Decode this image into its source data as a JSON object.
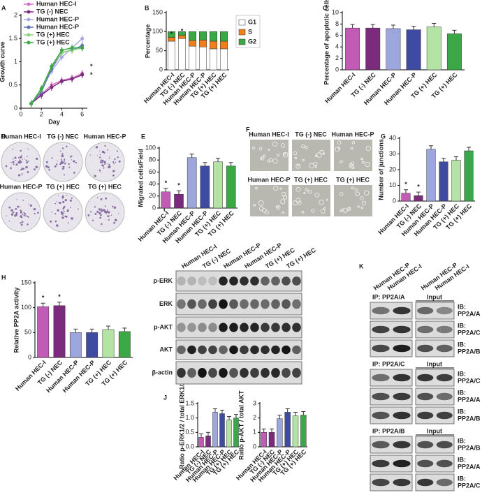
{
  "panel_letters": [
    "A",
    "B",
    "C",
    "D",
    "E",
    "F",
    "G",
    "H",
    "I",
    "J",
    "K"
  ],
  "chart_data": [
    {
      "type": "line",
      "ylabel": "Growth curve",
      "xlabel": "Day",
      "x": [
        1,
        2,
        3,
        4,
        5,
        6
      ],
      "xlim": [
        0,
        6.5
      ],
      "xticks": [
        0,
        2,
        4,
        6
      ],
      "ylim": [
        0,
        2
      ],
      "yticks": [
        0,
        0.5,
        1,
        1.5,
        2
      ],
      "annotations": [
        "*",
        "*"
      ],
      "series": [
        {
          "name": "Human HEC-I",
          "color": "#d36fc6",
          "values": [
            0.1,
            0.3,
            0.5,
            0.6,
            0.65,
            0.75
          ]
        },
        {
          "name": "TG (-) NEC",
          "color": "#7b2a7e",
          "values": [
            0.1,
            0.28,
            0.45,
            0.58,
            0.63,
            0.72
          ]
        },
        {
          "name": "Human HEC-P",
          "color": "#a9a9e6",
          "values": [
            0.1,
            0.4,
            0.8,
            1.1,
            1.3,
            1.5
          ]
        },
        {
          "name": "Human HEC-P",
          "color": "#5d6fb5",
          "values": [
            0.1,
            0.35,
            0.85,
            1.2,
            1.25,
            1.35
          ]
        },
        {
          "name": "TG (+) HEC",
          "color": "#8fd17f",
          "values": [
            0.1,
            0.4,
            0.9,
            1.2,
            1.25,
            1.3
          ]
        },
        {
          "name": "TG (+) HEC",
          "color": "#3aa843",
          "values": [
            0.1,
            0.42,
            0.9,
            1.25,
            1.3,
            1.3
          ]
        }
      ]
    },
    {
      "type": "stacked_bar",
      "ylabel": "Percentage",
      "categories": [
        "Human HEC-I",
        "TG (-) NEC",
        "Human HEC-P",
        "Human HEC-P",
        "TG (+) HEC",
        "TG (+) HEC"
      ],
      "ylim": [
        0,
        150
      ],
      "yticks": [
        0,
        50,
        100,
        150
      ],
      "markers": [
        "*",
        "*",
        null,
        null,
        null,
        null
      ],
      "series": [
        {
          "name": "G1",
          "color": "#ffffff",
          "values": [
            75,
            82,
            62,
            60,
            55,
            55
          ]
        },
        {
          "name": "S",
          "color": "#f07f1c",
          "values": [
            10,
            8,
            15,
            18,
            20,
            20
          ]
        },
        {
          "name": "G2",
          "color": "#3aa843",
          "values": [
            15,
            10,
            23,
            22,
            25,
            25
          ]
        }
      ]
    },
    {
      "type": "bar",
      "ylabel": "Percentage of apoptotic cells",
      "categories": [
        "Human HEC-I",
        "TG (-) NEC",
        "Human HEC-P",
        "Human HEC-P",
        "TG (+) HEC",
        "TG (+) HEC"
      ],
      "ylim": [
        0,
        10
      ],
      "yticks": [
        0,
        2,
        4,
        6,
        8,
        10
      ],
      "colors": [
        "#c25bb5",
        "#7b2a7e",
        "#9ea7dd",
        "#3f4ba3",
        "#b5e3a6",
        "#39a845"
      ],
      "values": [
        7.3,
        7.3,
        7.2,
        7.0,
        7.5,
        6.3
      ]
    },
    {
      "type": "bar",
      "ylabel": "Migrated cells/Field",
      "categories": [
        "Human HEC-I",
        "TG (-) NEC",
        "Human HEC-P",
        "Human HEC-P",
        "TG (+) HEC",
        "TG (+) HEC"
      ],
      "ylim": [
        0,
        100
      ],
      "yticks": [
        0,
        20,
        40,
        60,
        80,
        100
      ],
      "colors": [
        "#c25bb5",
        "#7b2a7e",
        "#9ea7dd",
        "#3f4ba3",
        "#b5e3a6",
        "#39a845"
      ],
      "values": [
        27,
        23,
        84,
        70,
        77,
        70
      ],
      "markers": [
        "*",
        "*",
        null,
        null,
        null,
        null
      ]
    },
    {
      "type": "bar",
      "ylabel": "Number of junctions",
      "categories": [
        "Human HEC-I",
        "TG (-) NEC",
        "Human HEC-P",
        "Human HEC-P",
        "TG (+) HEC",
        "TG (+) HEC"
      ],
      "ylim": [
        0,
        40
      ],
      "yticks": [
        0,
        10,
        20,
        30,
        40
      ],
      "colors": [
        "#c25bb5",
        "#7b2a7e",
        "#9ea7dd",
        "#3f4ba3",
        "#b5e3a6",
        "#39a845"
      ],
      "values": [
        5,
        3.5,
        33,
        25,
        26,
        32
      ],
      "markers": [
        "*",
        "*",
        null,
        null,
        null,
        null
      ]
    },
    {
      "type": "bar",
      "ylabel": "Relative PP2A activity",
      "categories": [
        "Human HEC-I",
        "TG (-) NEC",
        "Human HEC-P",
        "Human HEC-P",
        "TG (+) HEC",
        "TG (+) HEC"
      ],
      "ylim": [
        0,
        150
      ],
      "yticks": [
        0,
        50,
        100,
        150
      ],
      "colors": [
        "#c25bb5",
        "#7b2a7e",
        "#9ea7dd",
        "#3f4ba3",
        "#b5e3a6",
        "#39a845"
      ],
      "values": [
        102,
        104,
        50,
        50,
        56,
        52
      ],
      "markers": [
        "*",
        "*",
        null,
        null,
        null,
        null
      ]
    },
    {
      "type": "bar",
      "ylabel": "Ratio p-ERK1/2 / total ERK1/2",
      "categories": [
        "Human HEC-I",
        "TG (-) NEC",
        "Human HEC-P",
        "Human HEC-P",
        "TG (+) HEC",
        "TG (+) HEC"
      ],
      "ylim": [
        0,
        1.5
      ],
      "yticks": [
        {
          "value": 0,
          "label": "0.0"
        },
        0.5,
        {
          "value": 1,
          "label": "1.0"
        },
        1.5
      ],
      "colors": [
        "#c25bb5",
        "#7b2a7e",
        "#9ea7dd",
        "#3f4ba3",
        "#b5e3a6",
        "#39a845"
      ],
      "values": [
        0.33,
        0.38,
        1.2,
        1.15,
        0.93,
        1.0
      ]
    },
    {
      "type": "bar",
      "ylabel": "Ratio p-AKT / total AKT",
      "categories": [
        "Human HEC-I",
        "TG (-) NEC",
        "Human HEC-P",
        "Human HEC-P",
        "TG (+) HEC",
        "TG (+) HEC"
      ],
      "ylim": [
        0,
        3
      ],
      "yticks": [
        0,
        1,
        2,
        3
      ],
      "colors": [
        "#c25bb5",
        "#7b2a7e",
        "#9ea7dd",
        "#3f4ba3",
        "#b5e3a6",
        "#39a845"
      ],
      "values": [
        1.0,
        1.0,
        1.95,
        2.4,
        2.15,
        2.2
      ]
    }
  ],
  "images_D": [
    "Human HEC-I",
    "TG (-) NEC",
    "Human HEC-P",
    "Human HEC-P",
    "TG (+) HEC",
    "TG (+) HEC"
  ],
  "images_F": [
    "Human HEC-I",
    "TG (-) NEC",
    "Human HEC-P",
    "Human HEC-P",
    "TG (+) HEC",
    "TG (+) HEC"
  ],
  "blot_I": {
    "columns": [
      "Human HEC-I",
      "TG (-) NEC",
      "Human HEC-P",
      "Human HEC-P",
      "TG (+) HEC",
      "TG (+) HEC"
    ],
    "rows": [
      "p-ERK",
      "ERK",
      "p-AKT",
      "AKT",
      "β-actin"
    ]
  },
  "blot_K": {
    "columns": [
      "Human HEC-P",
      "Human HEC-I",
      "Human HEC-P",
      "Human HEC-I"
    ],
    "groups": [
      {
        "ip": "IP: PP2A/A",
        "input": "Input",
        "ib": [
          [
            "IB:",
            "PP2A/A"
          ],
          [
            "IB:",
            "PP2A/C"
          ],
          [
            "IB:",
            "PP2A/B"
          ]
        ]
      },
      {
        "ip": "IP: PP2A/C",
        "input": "Input",
        "ib": [
          [
            "IB:",
            "PP2A/C"
          ],
          [
            "IB:",
            "PP2A/A"
          ],
          [
            "IB:",
            "PP2A/B"
          ]
        ]
      },
      {
        "ip": "IP: PP2A/B",
        "input": "Input",
        "ib": [
          [
            "IB:",
            "PP2A/B"
          ],
          [
            "IB:",
            "PP2A/A"
          ],
          [
            "IB:",
            "PP2A/C"
          ]
        ]
      }
    ]
  }
}
